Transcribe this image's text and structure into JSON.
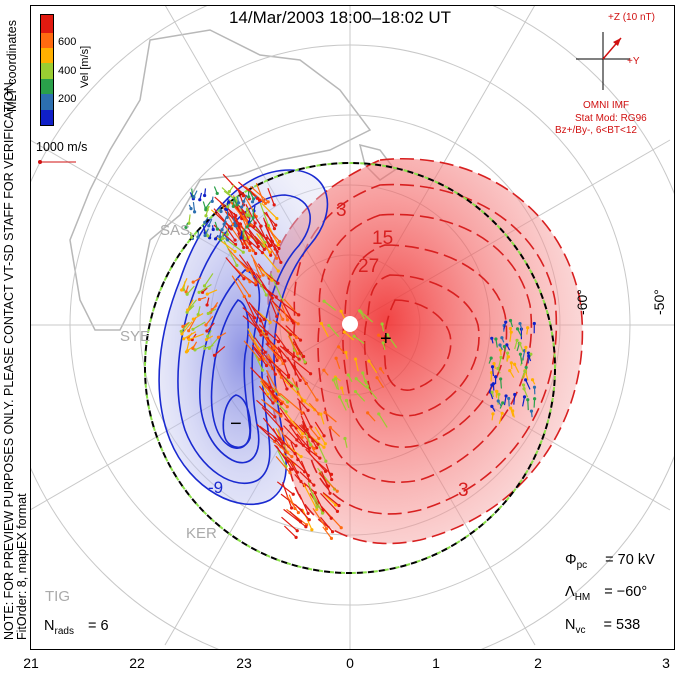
{
  "title": "14/Mar/2003 18:00–18:02 UT",
  "side_notes": {
    "mlt": "MLT coordinates",
    "preview": "NOTE: FOR PREVIEW PURPOSES ONLY. PLEASE CONTACT VT-SD STAFF FOR VERIFICATION.",
    "fitorder": "FitOrder: 8, mapEX format"
  },
  "colorbar": {
    "label": "Vel [m/s]",
    "ticks": [
      "600",
      "400",
      "200"
    ],
    "colors": [
      "#e11a10",
      "#ff6a10",
      "#ffb000",
      "#9acd32",
      "#2aa04a",
      "#2c6fb0",
      "#1020c8"
    ]
  },
  "scale_vector": {
    "label": "1000 m/s",
    "color": "#d01010"
  },
  "imf": {
    "z_label": "+Z (10 nT)",
    "y_label": "+Y",
    "source": "OMNI IMF",
    "stat_mod": "Stat Mod: RG96",
    "condition": "Bz+/By-, 6<BT<12",
    "color": "#d01010"
  },
  "stations": [
    "SAS",
    "SYE",
    "KER",
    "TIG"
  ],
  "contour_labels": {
    "c3_top": "3",
    "c15": "15",
    "c27": "27",
    "c3_bottom": "3",
    "neg": "-9"
  },
  "lat_labels": {
    "l60": "-60°",
    "l50": "-50°"
  },
  "mlt_ticks": [
    "21",
    "22",
    "23",
    "0",
    "1",
    "2",
    "3"
  ],
  "stats": {
    "phi_label": "Φ",
    "phi_sub": "pc",
    "phi_value": "= 70 kV",
    "lambda_label": "Λ",
    "lambda_sub": "HM",
    "lambda_value": "= −60°",
    "nvc_label": "N",
    "nvc_sub": "vc",
    "nvc_value": "= 538",
    "nrads_label": "N",
    "nrads_sub": "rads",
    "nrads_value": "= 6"
  },
  "markers": {
    "plus": "+",
    "minus": "−"
  }
}
